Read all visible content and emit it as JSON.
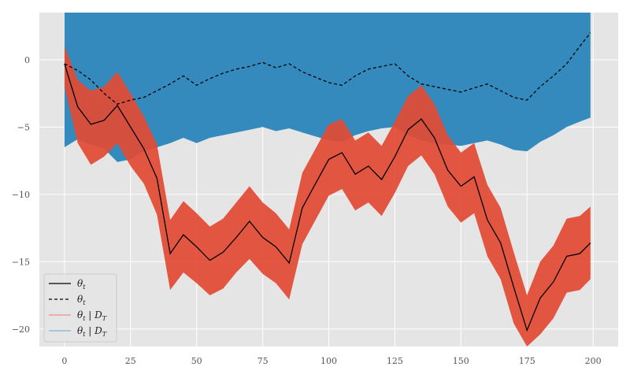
{
  "chart_data": {
    "type": "line",
    "title": "",
    "xlabel": "",
    "ylabel": "",
    "xlim": [
      -9.5,
      209.5
    ],
    "ylim": [
      -21.3,
      3.5
    ],
    "x_ticks": [
      0,
      25,
      50,
      75,
      100,
      125,
      150,
      175,
      200
    ],
    "y_ticks": [
      0,
      -5,
      -10,
      -15,
      -20
    ],
    "x_tick_labels": [
      "0",
      "25",
      "50",
      "75",
      "100",
      "125",
      "150",
      "175",
      "200"
    ],
    "y_tick_labels": [
      "0",
      "−5",
      "−10",
      "−15",
      "−20"
    ],
    "grid": true,
    "legend_position": "lower-left",
    "colors": {
      "background": "#e5e5e5",
      "grid": "#ffffff",
      "true_state": "#000000",
      "red_band": "#e24a33",
      "blue_band": "#348abd"
    },
    "series": [
      {
        "name": "θt",
        "style": "solid",
        "color": "#000000",
        "x": [
          0,
          5,
          10,
          15,
          20,
          25,
          30,
          35,
          40,
          45,
          50,
          55,
          60,
          65,
          70,
          75,
          80,
          85,
          90,
          95,
          100,
          105,
          110,
          115,
          120,
          125,
          130,
          135,
          140,
          145,
          150,
          155,
          160,
          165,
          170,
          175,
          180,
          185,
          190,
          195,
          199
        ],
        "values": [
          -0.3,
          -3.5,
          -4.8,
          -4.5,
          -3.4,
          -5.0,
          -6.6,
          -8.8,
          -14.4,
          -13.0,
          -13.9,
          -14.9,
          -14.3,
          -13.2,
          -12.0,
          -13.2,
          -13.9,
          -15.1,
          -11.0,
          -9.2,
          -7.4,
          -6.9,
          -8.5,
          -7.9,
          -8.9,
          -7.2,
          -5.2,
          -4.4,
          -5.8,
          -8.2,
          -9.4,
          -8.7,
          -11.9,
          -13.6,
          -16.9,
          -20.1,
          -17.7,
          -16.5,
          -14.6,
          -14.4,
          -13.6
        ]
      },
      {
        "name": "θt",
        "style": "dashed",
        "color": "#000000",
        "x": [
          0,
          5,
          10,
          15,
          20,
          25,
          30,
          35,
          40,
          45,
          50,
          55,
          60,
          65,
          70,
          75,
          80,
          85,
          90,
          95,
          100,
          105,
          110,
          115,
          120,
          125,
          130,
          135,
          140,
          145,
          150,
          155,
          160,
          165,
          170,
          175,
          180,
          185,
          190,
          195,
          199
        ],
        "values": [
          -0.3,
          -0.8,
          -1.5,
          -2.5,
          -3.3,
          -3.0,
          -2.8,
          -2.3,
          -1.8,
          -1.2,
          -1.9,
          -1.4,
          -1.0,
          -0.7,
          -0.5,
          -0.2,
          -0.6,
          -0.3,
          -0.9,
          -1.3,
          -1.7,
          -1.9,
          -1.2,
          -0.7,
          -0.5,
          -0.3,
          -1.2,
          -1.8,
          -2.0,
          -2.2,
          -2.4,
          -2.1,
          -1.8,
          -2.3,
          -2.8,
          -3.0,
          -2.0,
          -1.2,
          -0.3,
          1.0,
          2.0
        ]
      },
      {
        "name": "θt | DT",
        "style": "band",
        "color": "#e24a33",
        "x": [
          0,
          5,
          10,
          15,
          20,
          25,
          30,
          35,
          40,
          45,
          50,
          55,
          60,
          65,
          70,
          75,
          80,
          85,
          90,
          95,
          100,
          105,
          110,
          115,
          120,
          125,
          130,
          135,
          140,
          145,
          150,
          155,
          160,
          165,
          170,
          175,
          180,
          185,
          190,
          195,
          199
        ],
        "lower": [
          -2.0,
          -6.2,
          -7.8,
          -7.2,
          -6.2,
          -7.9,
          -9.2,
          -11.5,
          -17.1,
          -15.8,
          -16.6,
          -17.5,
          -17.0,
          -15.8,
          -14.8,
          -15.9,
          -16.6,
          -17.8,
          -13.7,
          -11.9,
          -10.1,
          -9.6,
          -11.2,
          -10.6,
          -11.6,
          -9.9,
          -7.9,
          -7.1,
          -8.5,
          -10.9,
          -12.1,
          -11.4,
          -14.6,
          -16.3,
          -19.6,
          -22.0,
          -20.4,
          -19.2,
          -17.3,
          -17.1,
          -16.3
        ],
        "upper": [
          1.0,
          -1.5,
          -2.3,
          -2.0,
          -0.9,
          -2.5,
          -4.2,
          -6.3,
          -11.9,
          -10.5,
          -11.4,
          -12.4,
          -11.8,
          -10.6,
          -9.4,
          -10.6,
          -11.4,
          -12.6,
          -8.4,
          -6.6,
          -4.8,
          -4.4,
          -6.0,
          -5.4,
          -6.4,
          -4.6,
          -2.7,
          -1.9,
          -3.3,
          -5.6,
          -6.9,
          -6.2,
          -9.3,
          -11.0,
          -14.3,
          -17.5,
          -15.0,
          -13.8,
          -11.8,
          -11.6,
          -10.9
        ]
      },
      {
        "name": "θt | DT",
        "style": "band",
        "color": "#348abd",
        "x": [
          0,
          5,
          10,
          15,
          20,
          25,
          30,
          35,
          40,
          45,
          50,
          55,
          60,
          65,
          70,
          75,
          80,
          85,
          90,
          95,
          100,
          105,
          110,
          115,
          120,
          125,
          130,
          135,
          140,
          145,
          150,
          155,
          160,
          165,
          170,
          175,
          180,
          185,
          190,
          195,
          199
        ],
        "lower": [
          -6.5,
          -5.9,
          -6.3,
          -6.6,
          -7.6,
          -7.4,
          -6.8,
          -6.5,
          -6.2,
          -5.8,
          -6.2,
          -5.8,
          -5.6,
          -5.4,
          -5.2,
          -5.0,
          -5.3,
          -5.1,
          -5.4,
          -5.7,
          -6.0,
          -6.1,
          -5.6,
          -5.3,
          -5.1,
          -5.0,
          -5.6,
          -6.0,
          -6.2,
          -6.3,
          -6.4,
          -6.2,
          -6.0,
          -6.3,
          -6.7,
          -6.8,
          -6.1,
          -5.6,
          -5.0,
          -4.6,
          -4.3
        ],
        "upper": [
          4.0,
          4.0,
          4.0,
          4.0,
          4.0,
          4.0,
          4.0,
          4.0,
          4.0,
          4.0,
          4.0,
          4.0,
          4.0,
          4.0,
          4.0,
          4.0,
          4.0,
          4.0,
          4.0,
          4.0,
          4.0,
          4.0,
          4.0,
          4.0,
          4.0,
          4.0,
          4.0,
          4.0,
          4.0,
          4.0,
          4.0,
          4.0,
          4.0,
          4.0,
          4.0,
          4.0,
          4.0,
          4.0,
          4.0,
          4.0,
          4.0
        ]
      }
    ],
    "legend": [
      {
        "label_main": "θ",
        "label_sub": "t",
        "label_rest": "",
        "style": "solid",
        "color": "#000000"
      },
      {
        "label_main": "θ",
        "label_sub": "t",
        "label_rest": "",
        "style": "dashed",
        "color": "#000000"
      },
      {
        "label_main": "θ",
        "label_sub": "t",
        "label_rest": " | D",
        "label_sub2": "T",
        "style": "band",
        "color": "#e24a33"
      },
      {
        "label_main": "θ",
        "label_sub": "t",
        "label_rest": " | D",
        "label_sub2": "T",
        "style": "band",
        "color": "#348abd"
      }
    ]
  }
}
